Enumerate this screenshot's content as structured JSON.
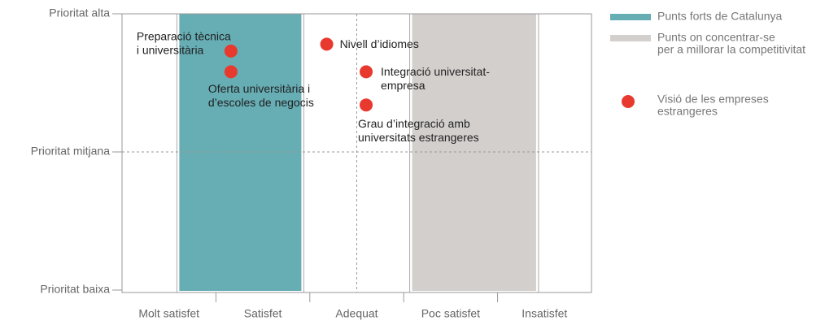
{
  "chart_data": {
    "type": "scatter",
    "categories": [
      "Molt satisfet",
      "Satisfet",
      "Adequat",
      "Poc satisfet",
      "Insatisfet"
    ],
    "xlim": [
      0,
      5
    ],
    "ylim": [
      0,
      2
    ],
    "yticks": [
      {
        "value": 0,
        "label": "Prioritat baixa"
      },
      {
        "value": 1,
        "label": "Prioritat mitjana"
      },
      {
        "value": 2,
        "label": "Prioritat alta"
      }
    ],
    "grid": "middle",
    "regions": [
      {
        "name": "Punts forts de Catalunya",
        "color": "#66adb4",
        "x": [
          0.61,
          1.91
        ]
      },
      {
        "name": [
          "Punts on concentrar-se",
          "per a millorar la competitivitat"
        ],
        "color": "#d3cfcd",
        "x": [
          3.09,
          4.41
        ]
      }
    ],
    "series": [
      {
        "name": [
          "Visió de les empreses",
          "estrangeres"
        ],
        "color": "#e8392f",
        "x": [
          1.16,
          1.16,
          2.18,
          2.6,
          2.6
        ],
        "values": [
          1.73,
          1.58,
          1.78,
          1.58,
          1.34
        ],
        "labels": [
          [
            "Preparació tècnica",
            "i universitària"
          ],
          [
            "Oferta universitària i",
            "d’escoles de negocis"
          ],
          [
            "Nivell d’idiomes"
          ],
          [
            "Integració universitat-",
            "empresa"
          ],
          [
            "Grau d’integració amb",
            "universitats estrangeres"
          ]
        ]
      }
    ],
    "legend": "right"
  }
}
